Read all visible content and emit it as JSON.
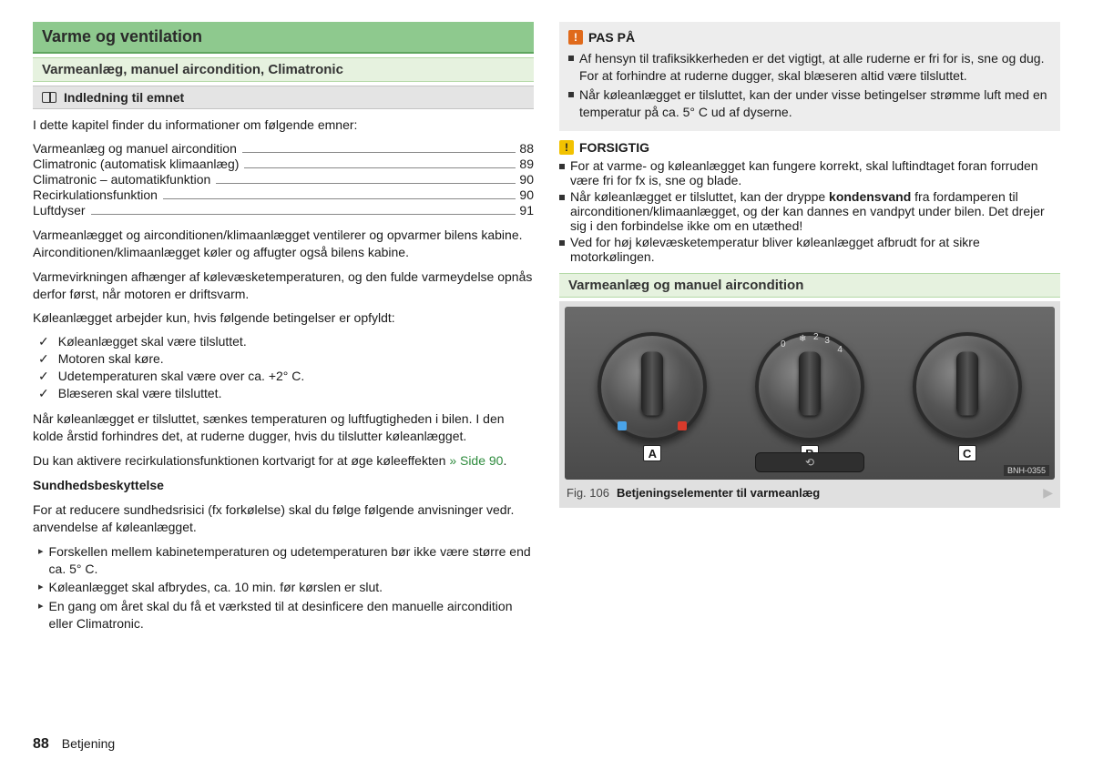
{
  "left": {
    "heading_main": "Varme og ventilation",
    "heading_sub": "Varmeanlæg, manuel aircondition, Climatronic",
    "heading_topic": "Indledning til emnet",
    "intro": "I dette kapitel finder du informationer om følgende emner:",
    "toc": [
      {
        "label": "Varmeanlæg og manuel aircondition",
        "page": "88"
      },
      {
        "label": "Climatronic (automatisk klimaanlæg)",
        "page": "89"
      },
      {
        "label": "Climatronic – automatikfunktion",
        "page": "90"
      },
      {
        "label": "Recirkulationsfunktion",
        "page": "90"
      },
      {
        "label": "Luftdyser",
        "page": "91"
      }
    ],
    "para1": "Varmeanlægget og airconditionen/klimaanlægget ventilerer og opvarmer bilens kabine. Airconditionen/klimaanlægget køler og affugter også bilens kabine.",
    "para2": "Varmevirkningen afhænger af kølevæsketemperaturen, og den fulde varmeydelse opnås derfor først, når motoren er driftsvarm.",
    "para3": "Køleanlægget arbejder kun, hvis følgende betingelser er opfyldt:",
    "checks": [
      "Køleanlægget skal være tilsluttet.",
      "Motoren skal køre.",
      "Udetemperaturen skal være over ca. +2° C.",
      "Blæseren skal være tilsluttet."
    ],
    "para4": "Når køleanlægget er tilsluttet, sænkes temperaturen og luftfugtigheden i bilen. I den kolde årstid forhindres det, at ruderne dugger, hvis du tilslutter køleanlægget.",
    "para5a": "Du kan aktivere recirkulationsfunktionen kortvarigt for at øge køleeffekten",
    "para5b": "» Side 90",
    "health_head": "Sundhedsbeskyttelse",
    "health_intro": "For at reducere sundhedsrisici (fx forkølelse) skal du følge følgende anvisninger vedr. anvendelse af køleanlægget.",
    "health_items": [
      "Forskellen mellem kabinetemperaturen og udetemperaturen bør ikke være større end ca. 5° C.",
      "Køleanlægget skal afbrydes, ca. 10 min. før kørslen er slut.",
      "En gang om året skal du få et værksted til at desinficere den manuelle aircondition eller Climatronic."
    ]
  },
  "right": {
    "paspaa_title": "PAS PÅ",
    "paspaa_items": [
      "Af hensyn til trafiksikkerheden er det vigtigt, at alle ruderne er fri for is, sne og dug. For at forhindre at ruderne dugger, skal blæseren altid være tilsluttet.",
      "Når køleanlægget er tilsluttet, kan der under visse betingelser strømme luft med en temperatur på ca. 5° C ud af dyserne."
    ],
    "forsigtig_title": "FORSIGTIG",
    "forsigtig_items": [
      "For at varme- og køleanlægget kan fungere korrekt, skal luftindtaget foran forruden være fri for fx is, sne og blade.",
      "Når køleanlægget er tilsluttet, kan der dryppe <b>kondensvand</b> fra fordamperen til airconditionen/klimaanlægget, og der kan dannes en vandpyt under bilen. Det drejer sig i den forbindelse ikke om en utæthed!",
      "Ved for høj kølevæsketemperatur bliver køleanlægget afbrudt for at sikre motorkølingen."
    ],
    "heading_sub2": "Varmeanlæg og manuel aircondition",
    "fig": {
      "labels": {
        "a": "A",
        "b": "B",
        "c": "C"
      },
      "code": "BNH-0355",
      "num": "Fig. 106",
      "caption": "Betjeningselementer til varmeanlæg"
    }
  },
  "footer": {
    "page": "88",
    "section": "Betjening"
  },
  "colors": {
    "heading_main_bg": "#8ec98e",
    "heading_sub_bg": "#e6f2df",
    "heading_topic_bg": "#e4e4e4",
    "link": "#2e8b3d",
    "notice_bg": "#ededed",
    "badge_orange": "#e06a1b",
    "badge_yellow": "#f2c200"
  }
}
